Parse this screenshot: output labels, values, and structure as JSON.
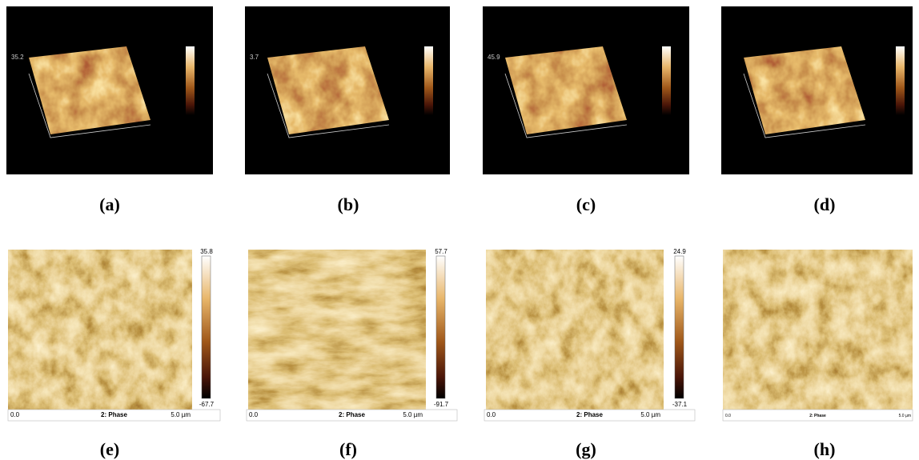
{
  "figure": {
    "top_panels": [
      {
        "label": "(a)",
        "z_max": "35.2"
      },
      {
        "label": "(b)",
        "z_max": "3.7"
      },
      {
        "label": "(c)",
        "z_max": "45.9"
      },
      {
        "label": "(d)"
      }
    ],
    "bottom_panels": [
      {
        "label": "(e)",
        "scale_max": "35.8",
        "scale_min": "-67.7",
        "channel": "2: Phase",
        "x_start": "0.0",
        "x_end": "5.0 µm"
      },
      {
        "label": "(f)",
        "scale_max": "57.7",
        "scale_min": "-91.7",
        "channel": "2: Phase",
        "x_start": "0.0",
        "x_end": "5.0 µm"
      },
      {
        "label": "(g)",
        "scale_max": "24.9",
        "scale_min": "-37.1",
        "channel": "2: Phase",
        "x_start": "0.0",
        "x_end": "5.0 µm"
      },
      {
        "label": "(h)",
        "channel": "2: Phase",
        "x_start": "0.0",
        "x_end": "5.0 µm"
      }
    ]
  }
}
